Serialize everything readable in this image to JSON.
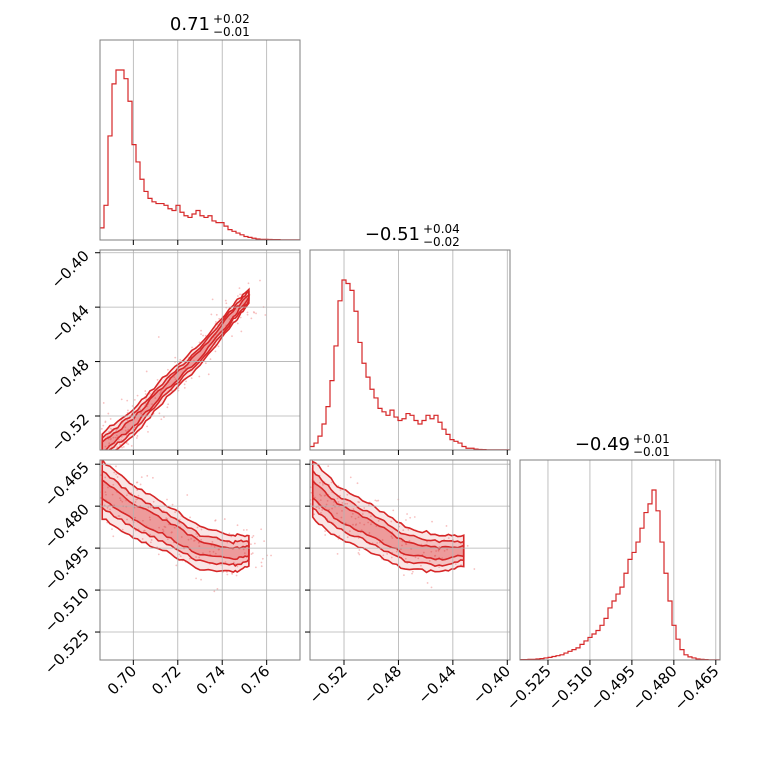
{
  "chart_data": {
    "type": "corner",
    "colors": {
      "accent": "#d62728",
      "grid": "#b0b0b0",
      "frame": "#7f7f7f"
    },
    "parameters": [
      {
        "title_main": "0.71",
        "title_sup": "+0.02",
        "title_sub": "−0.01",
        "range": [
          0.685,
          0.775
        ],
        "ticks": [
          0.7,
          0.72,
          0.74,
          0.76
        ],
        "tick_labels": [
          "0.70",
          "0.72",
          "0.74",
          "0.76"
        ],
        "hist_edges_start": 0.685,
        "hist_bin_width": 0.0018,
        "hist_values": [
          0.07,
          0.2,
          0.6,
          0.9,
          0.98,
          0.98,
          0.93,
          0.8,
          0.55,
          0.45,
          0.35,
          0.28,
          0.24,
          0.22,
          0.21,
          0.21,
          0.2,
          0.18,
          0.17,
          0.2,
          0.16,
          0.14,
          0.13,
          0.15,
          0.17,
          0.14,
          0.13,
          0.14,
          0.11,
          0.1,
          0.1,
          0.08,
          0.06,
          0.05,
          0.04,
          0.03,
          0.02,
          0.015,
          0.01,
          0.006,
          0.004,
          0.004,
          0.003,
          0.002,
          0.002,
          0.001,
          0.001,
          0.001,
          0.001,
          0.001
        ]
      },
      {
        "title_main": "−0.51",
        "title_sup": "+0.04",
        "title_sub": "−0.02",
        "range": [
          -0.545,
          -0.398
        ],
        "ticks": [
          -0.52,
          -0.48,
          -0.44,
          -0.4
        ],
        "tick_labels": [
          "−0.52",
          "−0.48",
          "−0.44",
          "−0.40"
        ],
        "hist_edges_start": -0.545,
        "hist_bin_width": 0.00294,
        "hist_values": [
          0.02,
          0.04,
          0.08,
          0.15,
          0.25,
          0.4,
          0.6,
          0.86,
          0.98,
          0.96,
          0.92,
          0.8,
          0.62,
          0.5,
          0.42,
          0.35,
          0.3,
          0.24,
          0.22,
          0.2,
          0.23,
          0.19,
          0.17,
          0.18,
          0.21,
          0.2,
          0.17,
          0.15,
          0.17,
          0.2,
          0.18,
          0.2,
          0.16,
          0.12,
          0.09,
          0.06,
          0.05,
          0.04,
          0.02,
          0.01,
          0.01,
          0.005,
          0.003,
          0.002,
          0.001,
          0.001,
          0.001,
          0.001,
          0.001,
          0.001
        ]
      },
      {
        "title_main": "−0.49",
        "title_sup": "+0.01",
        "title_sub": "−0.01",
        "range": [
          -0.535,
          -0.4635
        ],
        "ticks": [
          -0.525,
          -0.51,
          -0.495,
          -0.48,
          -0.465
        ],
        "tick_labels": [
          "−0.525",
          "−0.510",
          "−0.495",
          "−0.480",
          "−0.465"
        ],
        "hist_edges_start": -0.535,
        "hist_bin_width": 0.00143,
        "hist_values": [
          0.002,
          0.002,
          0.004,
          0.004,
          0.006,
          0.008,
          0.012,
          0.015,
          0.02,
          0.025,
          0.03,
          0.04,
          0.05,
          0.06,
          0.07,
          0.09,
          0.11,
          0.13,
          0.15,
          0.17,
          0.2,
          0.24,
          0.3,
          0.34,
          0.38,
          0.42,
          0.5,
          0.58,
          0.62,
          0.68,
          0.76,
          0.85,
          0.9,
          0.98,
          0.86,
          0.68,
          0.5,
          0.34,
          0.2,
          0.12,
          0.06,
          0.03,
          0.018,
          0.012,
          0.006,
          0.004,
          0.002,
          0.001,
          0.001,
          0.001
        ]
      }
    ],
    "pairs": [
      {
        "x_param": 0,
        "y_param": 1,
        "trend": [
          [
            0.686,
            -0.543
          ],
          [
            0.7,
            -0.525
          ],
          [
            0.715,
            -0.498
          ],
          [
            0.73,
            -0.475
          ],
          [
            0.745,
            -0.445
          ],
          [
            0.752,
            -0.432
          ]
        ]
      },
      {
        "x_param": 0,
        "y_param": 2,
        "trend": [
          [
            0.686,
            -0.474
          ],
          [
            0.7,
            -0.482
          ],
          [
            0.715,
            -0.488
          ],
          [
            0.73,
            -0.495
          ],
          [
            0.745,
            -0.497
          ],
          [
            0.752,
            -0.496
          ]
        ]
      },
      {
        "x_param": 1,
        "y_param": 2,
        "trend": [
          [
            -0.543,
            -0.474
          ],
          [
            -0.525,
            -0.482
          ],
          [
            -0.5,
            -0.488
          ],
          [
            -0.475,
            -0.495
          ],
          [
            -0.45,
            -0.497
          ],
          [
            -0.432,
            -0.496
          ]
        ]
      }
    ]
  }
}
